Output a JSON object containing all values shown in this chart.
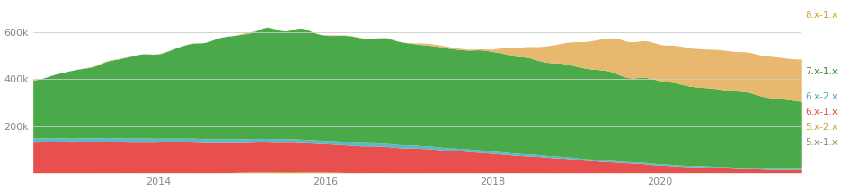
{
  "x_start_year": 2012.5,
  "x_end_year": 2021.7,
  "x_ticks": [
    2014,
    2016,
    2018,
    2020
  ],
  "y_tick_labels": [
    "200k",
    "400k",
    "600k"
  ],
  "ylim": [
    0,
    720000
  ],
  "colors_list": [
    "#e8b86e",
    "#4aaa4a",
    "#5ab8c8",
    "#e85050",
    "#c8a830",
    "#d8d8b0"
  ],
  "legend_labels": [
    "8.x-1.x",
    "7.x-1.x",
    "6.x-2.x",
    "6.x-1.x",
    "5.x-2.x",
    "5.x-1.x"
  ],
  "legend_colors": [
    "#d4a020",
    "#3a8c3a",
    "#50a8b8",
    "#e05040",
    "#c8a830",
    "#a8a870"
  ],
  "background_color": "#ffffff",
  "grid_color": "#cccccc"
}
